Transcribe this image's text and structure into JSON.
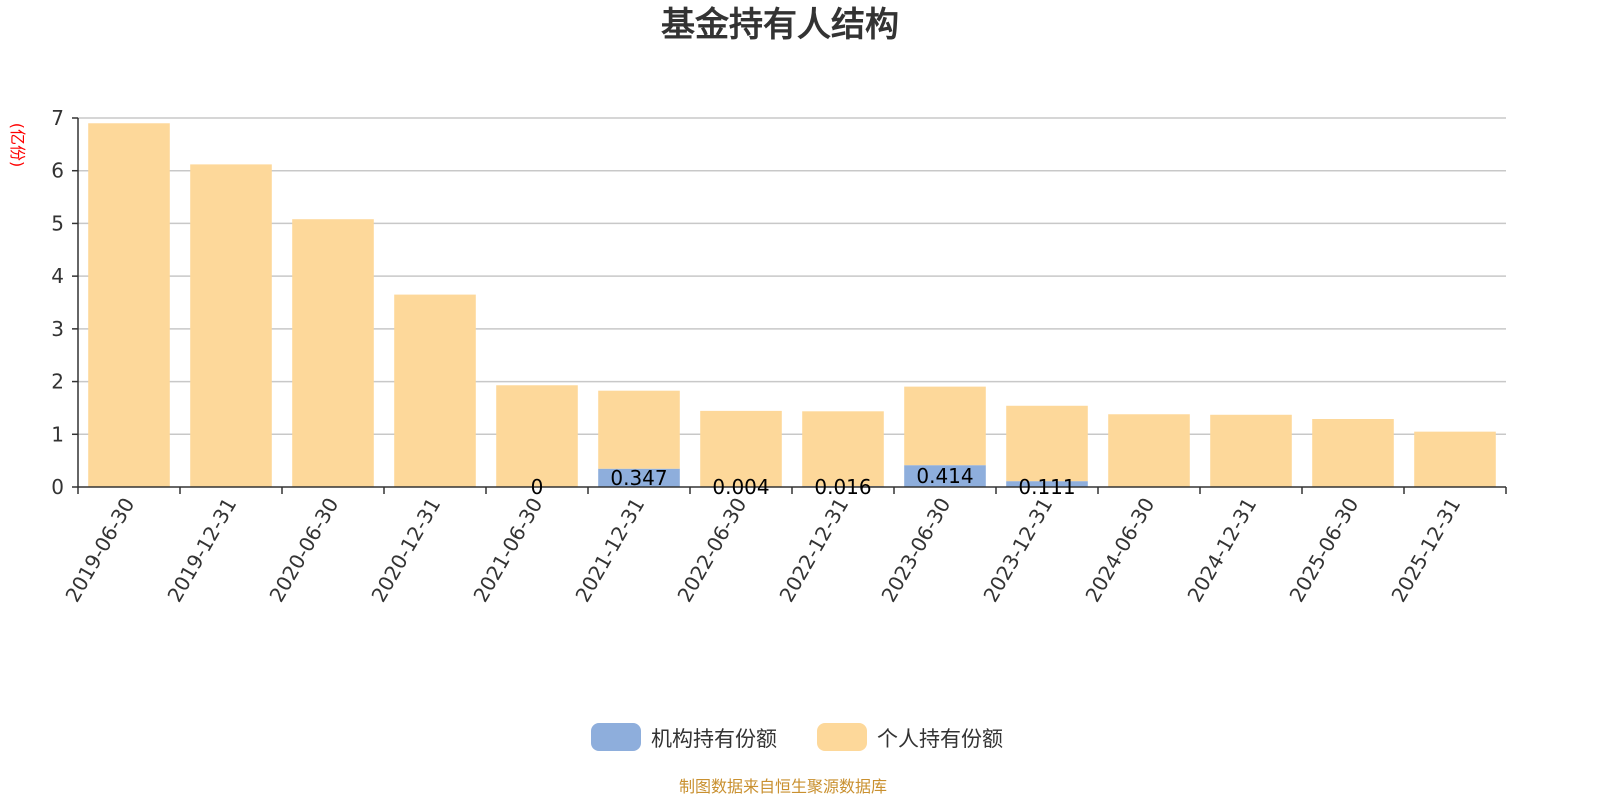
{
  "chart_data": {
    "type": "bar",
    "stacked": true,
    "title": "基金持有人结构",
    "ylabel": "(亿份)",
    "ylim": [
      0,
      7
    ],
    "yticks": [
      0,
      1,
      2,
      3,
      4,
      5,
      6,
      7
    ],
    "grid": true,
    "legend_position": "bottom",
    "categories": [
      "2019-06-30",
      "2019-12-31",
      "2020-06-30",
      "2020-12-31",
      "2021-06-30",
      "2021-12-31",
      "2022-06-30",
      "2022-12-31",
      "2023-06-30",
      "2023-12-31",
      "2024-06-30",
      "2024-12-31",
      "2025-06-30",
      "2025-12-31"
    ],
    "series": [
      {
        "name": "机构持有份额",
        "color": "#8eaedc",
        "values": [
          null,
          null,
          null,
          null,
          0,
          0.347,
          0.004,
          0.016,
          0.414,
          0.111,
          null,
          null,
          null,
          null
        ],
        "labels": [
          "",
          "",
          "",
          "",
          "0",
          "0.347",
          "0.004",
          "0.016",
          "0.414",
          "0.111",
          "",
          "",
          "",
          ""
        ]
      },
      {
        "name": "个人持有份额",
        "color": "#fdd89a",
        "values": [
          6.9,
          6.12,
          5.08,
          3.65,
          1.93,
          1.48,
          1.44,
          1.42,
          1.49,
          1.43,
          1.38,
          1.37,
          1.29,
          1.05
        ]
      }
    ],
    "footer": "制图数据来自恒生聚源数据库"
  }
}
